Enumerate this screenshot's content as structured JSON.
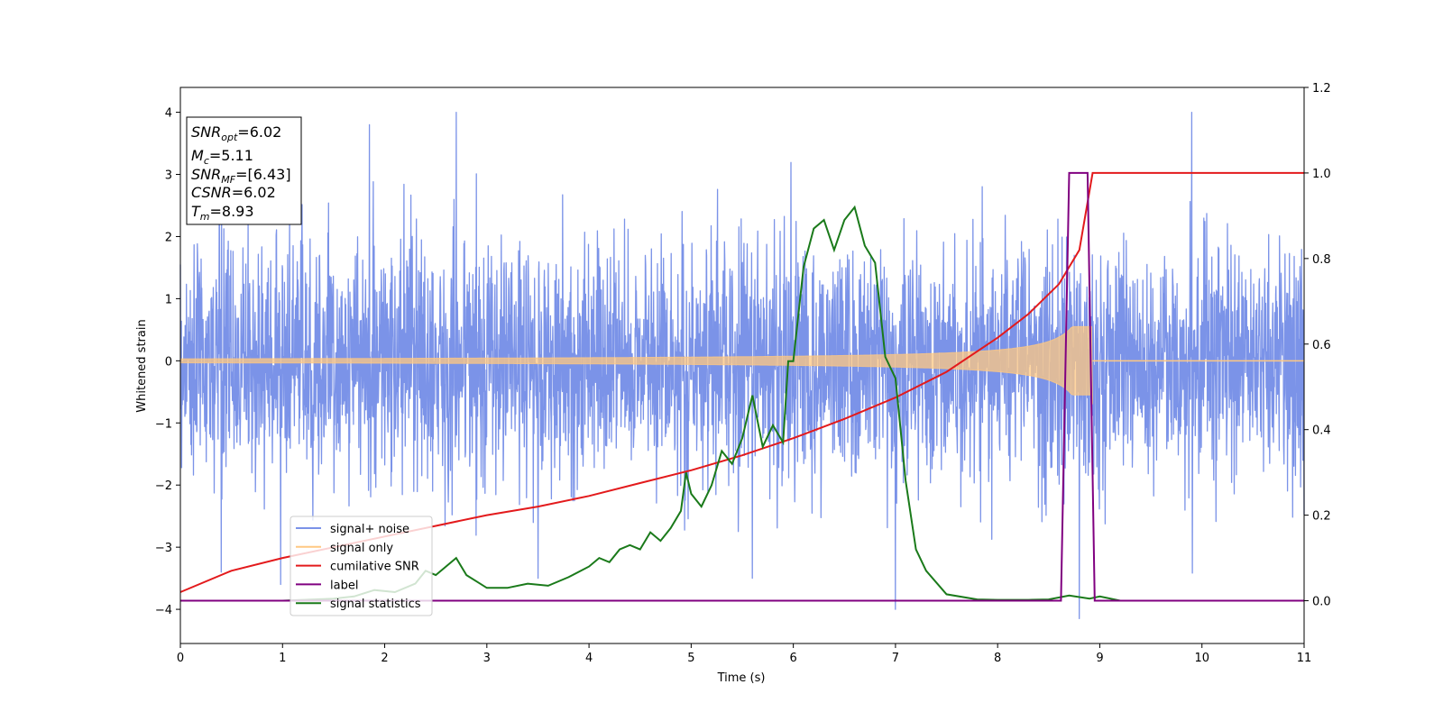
{
  "chart_data": {
    "type": "line",
    "xlabel": "Time (s)",
    "ylabel_left": "Whitened strain",
    "xlim": [
      0,
      11
    ],
    "ylim_left": [
      -4.55,
      4.4
    ],
    "ylim_right": [
      -0.1,
      1.2
    ],
    "x_ticks": [
      "0",
      "1",
      "2",
      "3",
      "4",
      "5",
      "6",
      "7",
      "8",
      "9",
      "10",
      "11"
    ],
    "y_left_ticks": [
      "4",
      "3",
      "2",
      "1",
      "0",
      "−1",
      "−2",
      "−3",
      "−4"
    ],
    "y_right_ticks": [
      "1.2",
      "1.0",
      "0.8",
      "0.6",
      "0.4",
      "0.2",
      "0.0"
    ],
    "info_box": {
      "snr_opt": {
        "sym": "SNR",
        "sub": "opt",
        "val": "=6.02"
      },
      "mc": {
        "sym": "M",
        "sub": "c",
        "val": "=5.11"
      },
      "snr_mf": {
        "sym": "SNR",
        "sub": "MF",
        "val": "=[6.43]"
      },
      "csnr": {
        "sym": "CSNR",
        "sub": "",
        "val": "=6.02"
      },
      "tm": {
        "sym": "T",
        "sub": "m",
        "val": "=8.93"
      }
    },
    "legend": {
      "placement": "lower-left",
      "entries": [
        {
          "label": "signal+ noise",
          "color": "#7b93e8"
        },
        {
          "label": "signal only",
          "color": "#ffc882"
        },
        {
          "label": "cumilative SNR",
          "color": "#e31a1c"
        },
        {
          "label": "label",
          "color": "#800080"
        },
        {
          "label": "signal statistics",
          "color": "#1a7a1a"
        }
      ]
    },
    "series": [
      {
        "name": "signal+ noise",
        "axis": "left",
        "color": "#7b93e8",
        "kind": "noisy-strain",
        "duration": 11,
        "sample_count": 3520,
        "std": 1.0,
        "extremes": [
          [
            1.85,
            3.8
          ],
          [
            2.7,
            4.0
          ],
          [
            9.9,
            4.0
          ],
          [
            7.0,
            -4.0
          ],
          [
            8.8,
            -4.15
          ],
          [
            0.4,
            -3.4
          ],
          [
            3.5,
            -3.5
          ],
          [
            5.6,
            -3.5
          ]
        ]
      },
      {
        "name": "signal only",
        "axis": "left",
        "color": "#ffc882",
        "kind": "chirp",
        "t_merge": 8.93,
        "amp_start": 0.03,
        "amp_end": 0.55
      },
      {
        "name": "cumilative SNR",
        "axis": "right",
        "color": "#e31a1c",
        "x": [
          0,
          0.5,
          1,
          1.5,
          2,
          2.5,
          3,
          3.5,
          4,
          4.5,
          5,
          5.5,
          6,
          6.5,
          7,
          7.5,
          8,
          8.3,
          8.6,
          8.8,
          8.93,
          9.0,
          11
        ],
        "values": [
          0.02,
          0.07,
          0.1,
          0.125,
          0.15,
          0.175,
          0.2,
          0.22,
          0.245,
          0.275,
          0.305,
          0.34,
          0.38,
          0.425,
          0.475,
          0.535,
          0.615,
          0.67,
          0.74,
          0.82,
          1.0,
          1.0,
          1.0
        ]
      },
      {
        "name": "label",
        "axis": "right",
        "color": "#800080",
        "x": [
          0,
          8.62,
          8.7,
          8.88,
          8.95,
          11
        ],
        "values": [
          0,
          0,
          1.0,
          1.0,
          0,
          0
        ]
      },
      {
        "name": "signal statistics",
        "axis": "right",
        "color": "#1a7a1a",
        "x": [
          0,
          0.5,
          1,
          1.5,
          1.7,
          1.9,
          2.1,
          2.3,
          2.4,
          2.5,
          2.6,
          2.7,
          2.8,
          2.9,
          3.0,
          3.2,
          3.4,
          3.6,
          3.8,
          4.0,
          4.1,
          4.2,
          4.3,
          4.4,
          4.5,
          4.6,
          4.7,
          4.8,
          4.9,
          4.95,
          5.0,
          5.1,
          5.2,
          5.3,
          5.4,
          5.5,
          5.6,
          5.7,
          5.8,
          5.9,
          5.95,
          6.0,
          6.1,
          6.2,
          6.3,
          6.4,
          6.5,
          6.6,
          6.7,
          6.8,
          6.9,
          7.0,
          7.1,
          7.2,
          7.3,
          7.5,
          7.8,
          8.0,
          8.3,
          8.5,
          8.7,
          8.9,
          9.0,
          9.2,
          9.5,
          10,
          11
        ],
        "values": [
          0,
          0,
          0,
          0.005,
          0.01,
          0.025,
          0.02,
          0.04,
          0.07,
          0.06,
          0.08,
          0.1,
          0.06,
          0.045,
          0.03,
          0.03,
          0.04,
          0.035,
          0.055,
          0.08,
          0.1,
          0.09,
          0.12,
          0.13,
          0.12,
          0.16,
          0.14,
          0.17,
          0.21,
          0.3,
          0.25,
          0.22,
          0.27,
          0.35,
          0.32,
          0.38,
          0.48,
          0.36,
          0.41,
          0.37,
          0.56,
          0.56,
          0.78,
          0.87,
          0.89,
          0.82,
          0.89,
          0.92,
          0.83,
          0.79,
          0.57,
          0.52,
          0.28,
          0.12,
          0.07,
          0.015,
          0.003,
          0.002,
          0.002,
          0.003,
          0.012,
          0.005,
          0.01,
          0.0,
          0.0,
          0.0,
          0.0
        ]
      }
    ]
  }
}
